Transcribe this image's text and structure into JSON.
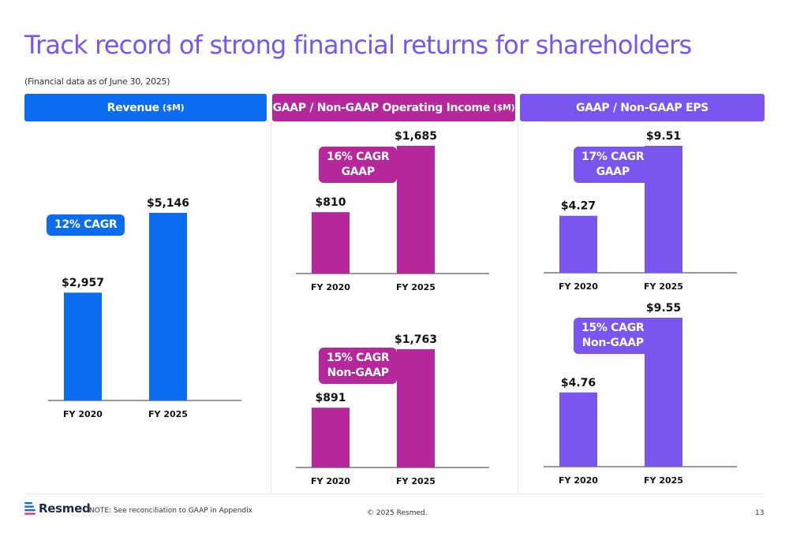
{
  "title": "Track record of strong financial returns for shareholders",
  "subtitle": "(Financial data as of June 30, 2025)",
  "colors": {
    "blue": "#0a6cf0",
    "magenta": "#b5279a",
    "purple": "#7b55f0"
  },
  "headers": {
    "revenue": {
      "label": "Revenue",
      "unit": "($M)"
    },
    "op_income": {
      "label": "GAAP / Non-GAAP Operating Income",
      "unit": "($M)"
    },
    "eps": {
      "label": "GAAP / Non-GAAP EPS",
      "unit": ""
    }
  },
  "badges": {
    "revenue": [
      "12% CAGR"
    ],
    "op_gaap": [
      "16% CAGR",
      "GAAP"
    ],
    "op_nongaap": [
      "15% CAGR",
      "Non-GAAP"
    ],
    "eps_gaap": [
      "17% CAGR",
      "GAAP"
    ],
    "eps_nongaap": [
      "15% CAGR",
      "Non-GAAP"
    ]
  },
  "chart_data": [
    {
      "id": "revenue",
      "type": "bar",
      "categories": [
        "FY 2020",
        "FY 2025"
      ],
      "values": [
        2957,
        5146
      ],
      "labels": [
        "$2,957",
        "$5,146"
      ],
      "ylim": [
        0,
        5146
      ]
    },
    {
      "id": "op_gaap",
      "type": "bar",
      "categories": [
        "FY 2020",
        "FY 2025"
      ],
      "values": [
        810,
        1685
      ],
      "labels": [
        "$810",
        "$1,685"
      ],
      "ylim": [
        0,
        1685
      ]
    },
    {
      "id": "op_nongaap",
      "type": "bar",
      "categories": [
        "FY 2020",
        "FY 2025"
      ],
      "values": [
        891,
        1763
      ],
      "labels": [
        "$891",
        "$1,763"
      ],
      "ylim": [
        0,
        1763
      ]
    },
    {
      "id": "eps_gaap",
      "type": "bar",
      "categories": [
        "FY 2020",
        "FY 2025"
      ],
      "values": [
        4.27,
        9.51
      ],
      "labels": [
        "$4.27",
        "$9.51"
      ],
      "ylim": [
        0,
        9.51
      ]
    },
    {
      "id": "eps_nongaap",
      "type": "bar",
      "categories": [
        "FY 2020",
        "FY 2025"
      ],
      "values": [
        4.76,
        9.55
      ],
      "labels": [
        "$4.76",
        "$9.55"
      ],
      "ylim": [
        0,
        9.55
      ]
    }
  ],
  "footer": {
    "logo_text": "Resmed",
    "note": "NOTE: See reconciliation to GAAP in Appendix",
    "copyright": "© 2025 Resmed.",
    "page_number": "13"
  }
}
